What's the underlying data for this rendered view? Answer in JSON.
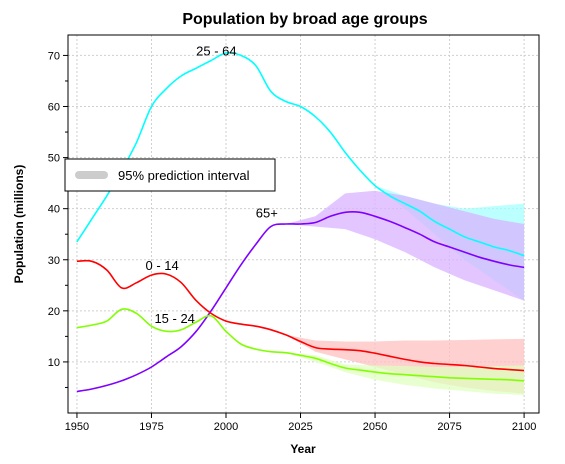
{
  "chart_data": {
    "type": "line",
    "title": "Population by broad age groups",
    "xlabel": "Year",
    "ylabel": "Population (millions)",
    "xlim": [
      1947,
      2105
    ],
    "ylim": [
      0,
      74
    ],
    "x_ticks": [
      1950,
      1975,
      2000,
      2025,
      2050,
      2075,
      2100
    ],
    "y_ticks": [
      10,
      20,
      30,
      40,
      50,
      60,
      70
    ],
    "grid": true,
    "legend": {
      "label": "95% prediction interval",
      "position": "middle-left",
      "color": "#cccccc"
    },
    "series": [
      {
        "name": "25 - 64",
        "color": "#00ffff",
        "band_color": "#a6ffff",
        "x": [
          1950,
          1955,
          1960,
          1965,
          1970,
          1975,
          1980,
          1985,
          1990,
          1995,
          2000,
          2005,
          2010,
          2015,
          2020,
          2025,
          2030,
          2035,
          2040,
          2045,
          2050,
          2055,
          2060,
          2065,
          2070,
          2075,
          2080,
          2085,
          2090,
          2095,
          2100
        ],
        "values": [
          33.5,
          38,
          42.5,
          47.5,
          53,
          60,
          63.5,
          66,
          67.5,
          69,
          70.5,
          70,
          68,
          63,
          61,
          60,
          58,
          55,
          51,
          47.5,
          44.5,
          42.5,
          41,
          39.5,
          37.5,
          36,
          34.5,
          33.5,
          32.5,
          31.8,
          30.8
        ],
        "band": {
          "x": [
            2020,
            2030,
            2040,
            2050,
            2060,
            2070,
            2080,
            2090,
            2100
          ],
          "lower": [
            61,
            58,
            51,
            44.5,
            40,
            35,
            30,
            26,
            22
          ],
          "upper": [
            61,
            58,
            51,
            44.5,
            42.5,
            41,
            40,
            40.5,
            41
          ]
        }
      },
      {
        "name": "65+",
        "color": "#7f00ff",
        "band_color": "#d9b3ff",
        "x": [
          1950,
          1955,
          1960,
          1965,
          1970,
          1975,
          1980,
          1985,
          1990,
          1995,
          2000,
          2005,
          2010,
          2015,
          2020,
          2025,
          2030,
          2035,
          2040,
          2045,
          2050,
          2055,
          2060,
          2065,
          2070,
          2075,
          2080,
          2085,
          2090,
          2095,
          2100
        ],
        "values": [
          4.2,
          4.7,
          5.4,
          6.3,
          7.5,
          9,
          11,
          13,
          16,
          20,
          24.5,
          29,
          33,
          36.5,
          37,
          37,
          37.3,
          38.5,
          39.3,
          39.3,
          38.5,
          37.5,
          36.3,
          35,
          33.5,
          32.5,
          31.5,
          30.5,
          29.7,
          29,
          28.5
        ],
        "band": {
          "x": [
            2020,
            2030,
            2040,
            2050,
            2060,
            2070,
            2080,
            2090,
            2100
          ],
          "lower": [
            37,
            36.5,
            36,
            34,
            31.5,
            28.5,
            26,
            24,
            22
          ],
          "upper": [
            37,
            38.5,
            43,
            43.5,
            42.5,
            41,
            39.5,
            38,
            37
          ]
        }
      },
      {
        "name": "0 - 14",
        "color": "#ff0000",
        "band_color": "#ffc0c0",
        "x": [
          1950,
          1955,
          1960,
          1965,
          1970,
          1975,
          1980,
          1985,
          1990,
          1995,
          2000,
          2005,
          2010,
          2015,
          2020,
          2025,
          2030,
          2035,
          2040,
          2045,
          2050,
          2055,
          2060,
          2065,
          2070,
          2075,
          2080,
          2085,
          2090,
          2095,
          2100
        ],
        "values": [
          29.7,
          29.7,
          28,
          24.5,
          25.5,
          27,
          27.2,
          25.5,
          22,
          19.5,
          18,
          17.4,
          17,
          16.3,
          15.3,
          14,
          12.8,
          12.5,
          12.4,
          12.2,
          11.7,
          11.1,
          10.5,
          10,
          9.7,
          9.5,
          9.3,
          9,
          8.7,
          8.5,
          8.3
        ],
        "band": {
          "x": [
            2020,
            2030,
            2040,
            2050,
            2060,
            2070,
            2080,
            2090,
            2100
          ],
          "lower": [
            15.3,
            12,
            10.5,
            9,
            7.5,
            6,
            5,
            4.3,
            3.8
          ],
          "upper": [
            15.3,
            14.2,
            14,
            14,
            14.2,
            14.2,
            14.3,
            14.4,
            14.5
          ]
        }
      },
      {
        "name": "15 - 24",
        "color": "#80ff00",
        "band_color": "#e0ffc0",
        "x": [
          1950,
          1955,
          1960,
          1965,
          1970,
          1975,
          1980,
          1985,
          1990,
          1995,
          2000,
          2005,
          2010,
          2015,
          2020,
          2025,
          2030,
          2035,
          2040,
          2045,
          2050,
          2055,
          2060,
          2065,
          2070,
          2075,
          2080,
          2085,
          2090,
          2095,
          2100
        ],
        "values": [
          16.7,
          17.2,
          18,
          20.3,
          19.5,
          17,
          16,
          16.3,
          17.8,
          19,
          16,
          13.5,
          12.5,
          12,
          11.8,
          11.3,
          10.7,
          9.7,
          8.8,
          8.4,
          8,
          7.7,
          7.5,
          7.3,
          7.1,
          6.9,
          6.8,
          6.7,
          6.6,
          6.5,
          6.3
        ],
        "band": {
          "x": [
            2020,
            2030,
            2040,
            2050,
            2060,
            2070,
            2080,
            2090,
            2100
          ],
          "lower": [
            11.8,
            10,
            8,
            6.5,
            5.5,
            4.8,
            4.3,
            3.8,
            3.5
          ],
          "upper": [
            11.8,
            11.3,
            9.5,
            9.3,
            9.2,
            9,
            9,
            9.2,
            9.3
          ]
        }
      }
    ],
    "annotations": [
      {
        "text": "25 - 64",
        "series": "25 - 64",
        "x": 1990,
        "y": 70
      },
      {
        "text": "65+",
        "series": "65+",
        "x": 2010,
        "y": 38.3
      },
      {
        "text": "0 - 14",
        "series": "0 - 14",
        "x": 1973,
        "y": 28
      },
      {
        "text": "15 - 24",
        "series": "15 - 24",
        "x": 1976,
        "y": 17.6
      }
    ]
  }
}
